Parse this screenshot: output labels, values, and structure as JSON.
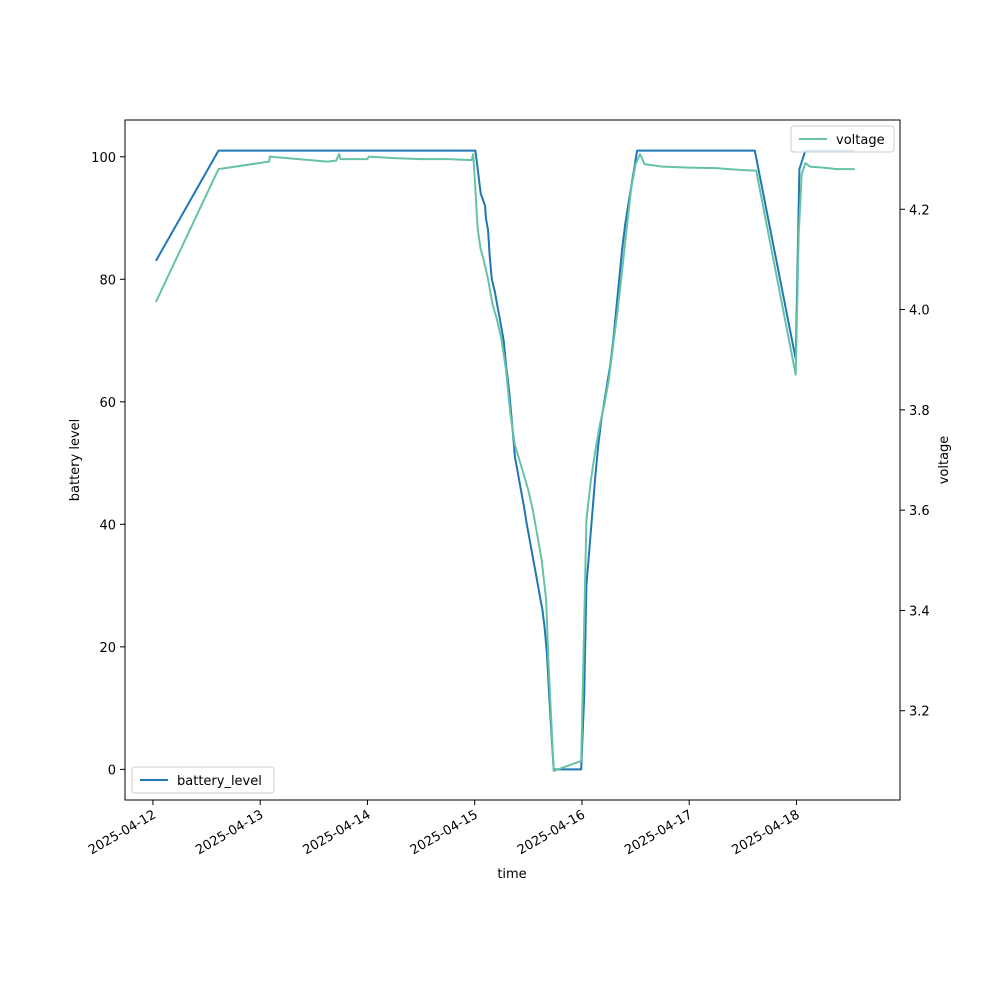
{
  "chart_data": {
    "type": "line",
    "title": "",
    "xlabel": "time",
    "ylabel": "battery level",
    "y2label": "voltage",
    "xlim": [
      "2025-04-11T17:45",
      "2025-04-18T23:10"
    ],
    "ylim": [
      -5,
      106
    ],
    "y2lim": [
      3.022,
      4.378
    ],
    "x_ticks": [
      "2025-04-12",
      "2025-04-13",
      "2025-04-14",
      "2025-04-15",
      "2025-04-16",
      "2025-04-17",
      "2025-04-18"
    ],
    "y_ticks": [
      0,
      20,
      40,
      60,
      80,
      100
    ],
    "y2_ticks": [
      3.2,
      3.4,
      3.6,
      3.8,
      4.0,
      4.2
    ],
    "grid": false,
    "series": [
      {
        "name": "battery_level",
        "axis": "left",
        "color": "#1f77b4",
        "legend": "lower-left",
        "points": [
          [
            "2025-04-12T00:40",
            83
          ],
          [
            "2025-04-12T14:40",
            101
          ],
          [
            "2025-04-15T00:10",
            101
          ],
          [
            "2025-04-15T00:40",
            98
          ],
          [
            "2025-04-15T01:20",
            94
          ],
          [
            "2025-04-15T01:50",
            93
          ],
          [
            "2025-04-15T02:20",
            92
          ],
          [
            "2025-04-15T02:30",
            90
          ],
          [
            "2025-04-15T03:00",
            88
          ],
          [
            "2025-04-15T03:20",
            84
          ],
          [
            "2025-04-15T03:50",
            80
          ],
          [
            "2025-04-15T04:30",
            78
          ],
          [
            "2025-04-15T05:00",
            76
          ],
          [
            "2025-04-15T05:30",
            74
          ],
          [
            "2025-04-15T06:00",
            72
          ],
          [
            "2025-04-15T06:30",
            70
          ],
          [
            "2025-04-15T07:00",
            66
          ],
          [
            "2025-04-15T07:40",
            62
          ],
          [
            "2025-04-15T08:10",
            58
          ],
          [
            "2025-04-15T08:40",
            54
          ],
          [
            "2025-04-15T09:00",
            51
          ],
          [
            "2025-04-15T09:30",
            49
          ],
          [
            "2025-04-15T10:00",
            47
          ],
          [
            "2025-04-15T10:30",
            45
          ],
          [
            "2025-04-15T11:00",
            43
          ],
          [
            "2025-04-15T11:40",
            40
          ],
          [
            "2025-04-15T12:10",
            38
          ],
          [
            "2025-04-15T12:40",
            36
          ],
          [
            "2025-04-15T13:10",
            34
          ],
          [
            "2025-04-15T13:40",
            32
          ],
          [
            "2025-04-15T14:10",
            30
          ],
          [
            "2025-04-15T14:40",
            28
          ],
          [
            "2025-04-15T15:10",
            26
          ],
          [
            "2025-04-15T15:40",
            23
          ],
          [
            "2025-04-15T16:10",
            19
          ],
          [
            "2025-04-15T16:40",
            12
          ],
          [
            "2025-04-15T17:10",
            6
          ],
          [
            "2025-04-15T17:40",
            0
          ],
          [
            "2025-04-15T23:50",
            0
          ],
          [
            "2025-04-16T00:30",
            12
          ],
          [
            "2025-04-16T01:00",
            30
          ],
          [
            "2025-04-16T01:40",
            36
          ],
          [
            "2025-04-16T02:20",
            42
          ],
          [
            "2025-04-16T03:00",
            48
          ],
          [
            "2025-04-16T03:40",
            53
          ],
          [
            "2025-04-16T04:20",
            57
          ],
          [
            "2025-04-16T05:00",
            60
          ],
          [
            "2025-04-16T05:40",
            63
          ],
          [
            "2025-04-16T06:20",
            66
          ],
          [
            "2025-04-16T07:00",
            70
          ],
          [
            "2025-04-16T07:40",
            75
          ],
          [
            "2025-04-16T08:20",
            80
          ],
          [
            "2025-04-16T09:00",
            85
          ],
          [
            "2025-04-16T09:40",
            89
          ],
          [
            "2025-04-16T10:20",
            92
          ],
          [
            "2025-04-16T11:00",
            95
          ],
          [
            "2025-04-16T11:40",
            98
          ],
          [
            "2025-04-16T12:20",
            101
          ],
          [
            "2025-04-17T14:40",
            101
          ],
          [
            "2025-04-17T23:50",
            67
          ],
          [
            "2025-04-18T00:40",
            98
          ],
          [
            "2025-04-18T02:00",
            101
          ],
          [
            "2025-04-18T13:00",
            101
          ]
        ]
      },
      {
        "name": "voltage",
        "axis": "right",
        "color": "#66c2a5",
        "legend": "upper-right",
        "points": [
          [
            "2025-04-12T00:40",
            4.015
          ],
          [
            "2025-04-12T14:40",
            4.28
          ],
          [
            "2025-04-13T02:00",
            4.295
          ],
          [
            "2025-04-13T02:10",
            4.305
          ],
          [
            "2025-04-13T15:00",
            4.295
          ],
          [
            "2025-04-13T17:00",
            4.297
          ],
          [
            "2025-04-13T17:40",
            4.31
          ],
          [
            "2025-04-13T18:00",
            4.3
          ],
          [
            "2025-04-14T00:00",
            4.3
          ],
          [
            "2025-04-14T00:20",
            4.305
          ],
          [
            "2025-04-14T06:00",
            4.302
          ],
          [
            "2025-04-14T12:00",
            4.3
          ],
          [
            "2025-04-14T18:00",
            4.3
          ],
          [
            "2025-04-14T23:20",
            4.298
          ],
          [
            "2025-04-14T23:40",
            4.31
          ],
          [
            "2025-04-15T00:10",
            4.24
          ],
          [
            "2025-04-15T00:40",
            4.16
          ],
          [
            "2025-04-15T01:20",
            4.12
          ],
          [
            "2025-04-15T02:00",
            4.1
          ],
          [
            "2025-04-15T03:00",
            4.06
          ],
          [
            "2025-04-15T04:00",
            4.01
          ],
          [
            "2025-04-15T05:00",
            3.98
          ],
          [
            "2025-04-15T06:00",
            3.94
          ],
          [
            "2025-04-15T07:00",
            3.88
          ],
          [
            "2025-04-15T08:00",
            3.79
          ],
          [
            "2025-04-15T09:00",
            3.73
          ],
          [
            "2025-04-15T10:00",
            3.7
          ],
          [
            "2025-04-15T11:00",
            3.67
          ],
          [
            "2025-04-15T12:00",
            3.64
          ],
          [
            "2025-04-15T13:00",
            3.6
          ],
          [
            "2025-04-15T14:00",
            3.55
          ],
          [
            "2025-04-15T15:00",
            3.5
          ],
          [
            "2025-04-15T16:00",
            3.42
          ],
          [
            "2025-04-15T16:30",
            3.3
          ],
          [
            "2025-04-15T17:40",
            3.08
          ],
          [
            "2025-04-15T23:50",
            3.1
          ],
          [
            "2025-04-16T00:20",
            3.3
          ],
          [
            "2025-04-16T01:00",
            3.58
          ],
          [
            "2025-04-16T02:00",
            3.66
          ],
          [
            "2025-04-16T03:00",
            3.72
          ],
          [
            "2025-04-16T04:00",
            3.77
          ],
          [
            "2025-04-16T05:00",
            3.81
          ],
          [
            "2025-04-16T06:00",
            3.86
          ],
          [
            "2025-04-16T07:00",
            3.93
          ],
          [
            "2025-04-16T08:00",
            4.0
          ],
          [
            "2025-04-16T09:00",
            4.08
          ],
          [
            "2025-04-16T10:00",
            4.16
          ],
          [
            "2025-04-16T11:00",
            4.24
          ],
          [
            "2025-04-16T12:00",
            4.29
          ],
          [
            "2025-04-16T13:00",
            4.31
          ],
          [
            "2025-04-16T14:00",
            4.29
          ],
          [
            "2025-04-16T18:00",
            4.285
          ],
          [
            "2025-04-17T00:00",
            4.283
          ],
          [
            "2025-04-17T06:00",
            4.282
          ],
          [
            "2025-04-17T12:00",
            4.278
          ],
          [
            "2025-04-17T15:00",
            4.277
          ],
          [
            "2025-04-17T23:50",
            3.87
          ],
          [
            "2025-04-18T00:30",
            4.15
          ],
          [
            "2025-04-18T01:10",
            4.27
          ],
          [
            "2025-04-18T02:00",
            4.292
          ],
          [
            "2025-04-18T03:00",
            4.285
          ],
          [
            "2025-04-18T06:00",
            4.283
          ],
          [
            "2025-04-18T09:00",
            4.28
          ],
          [
            "2025-04-18T13:00",
            4.28
          ]
        ]
      }
    ]
  }
}
